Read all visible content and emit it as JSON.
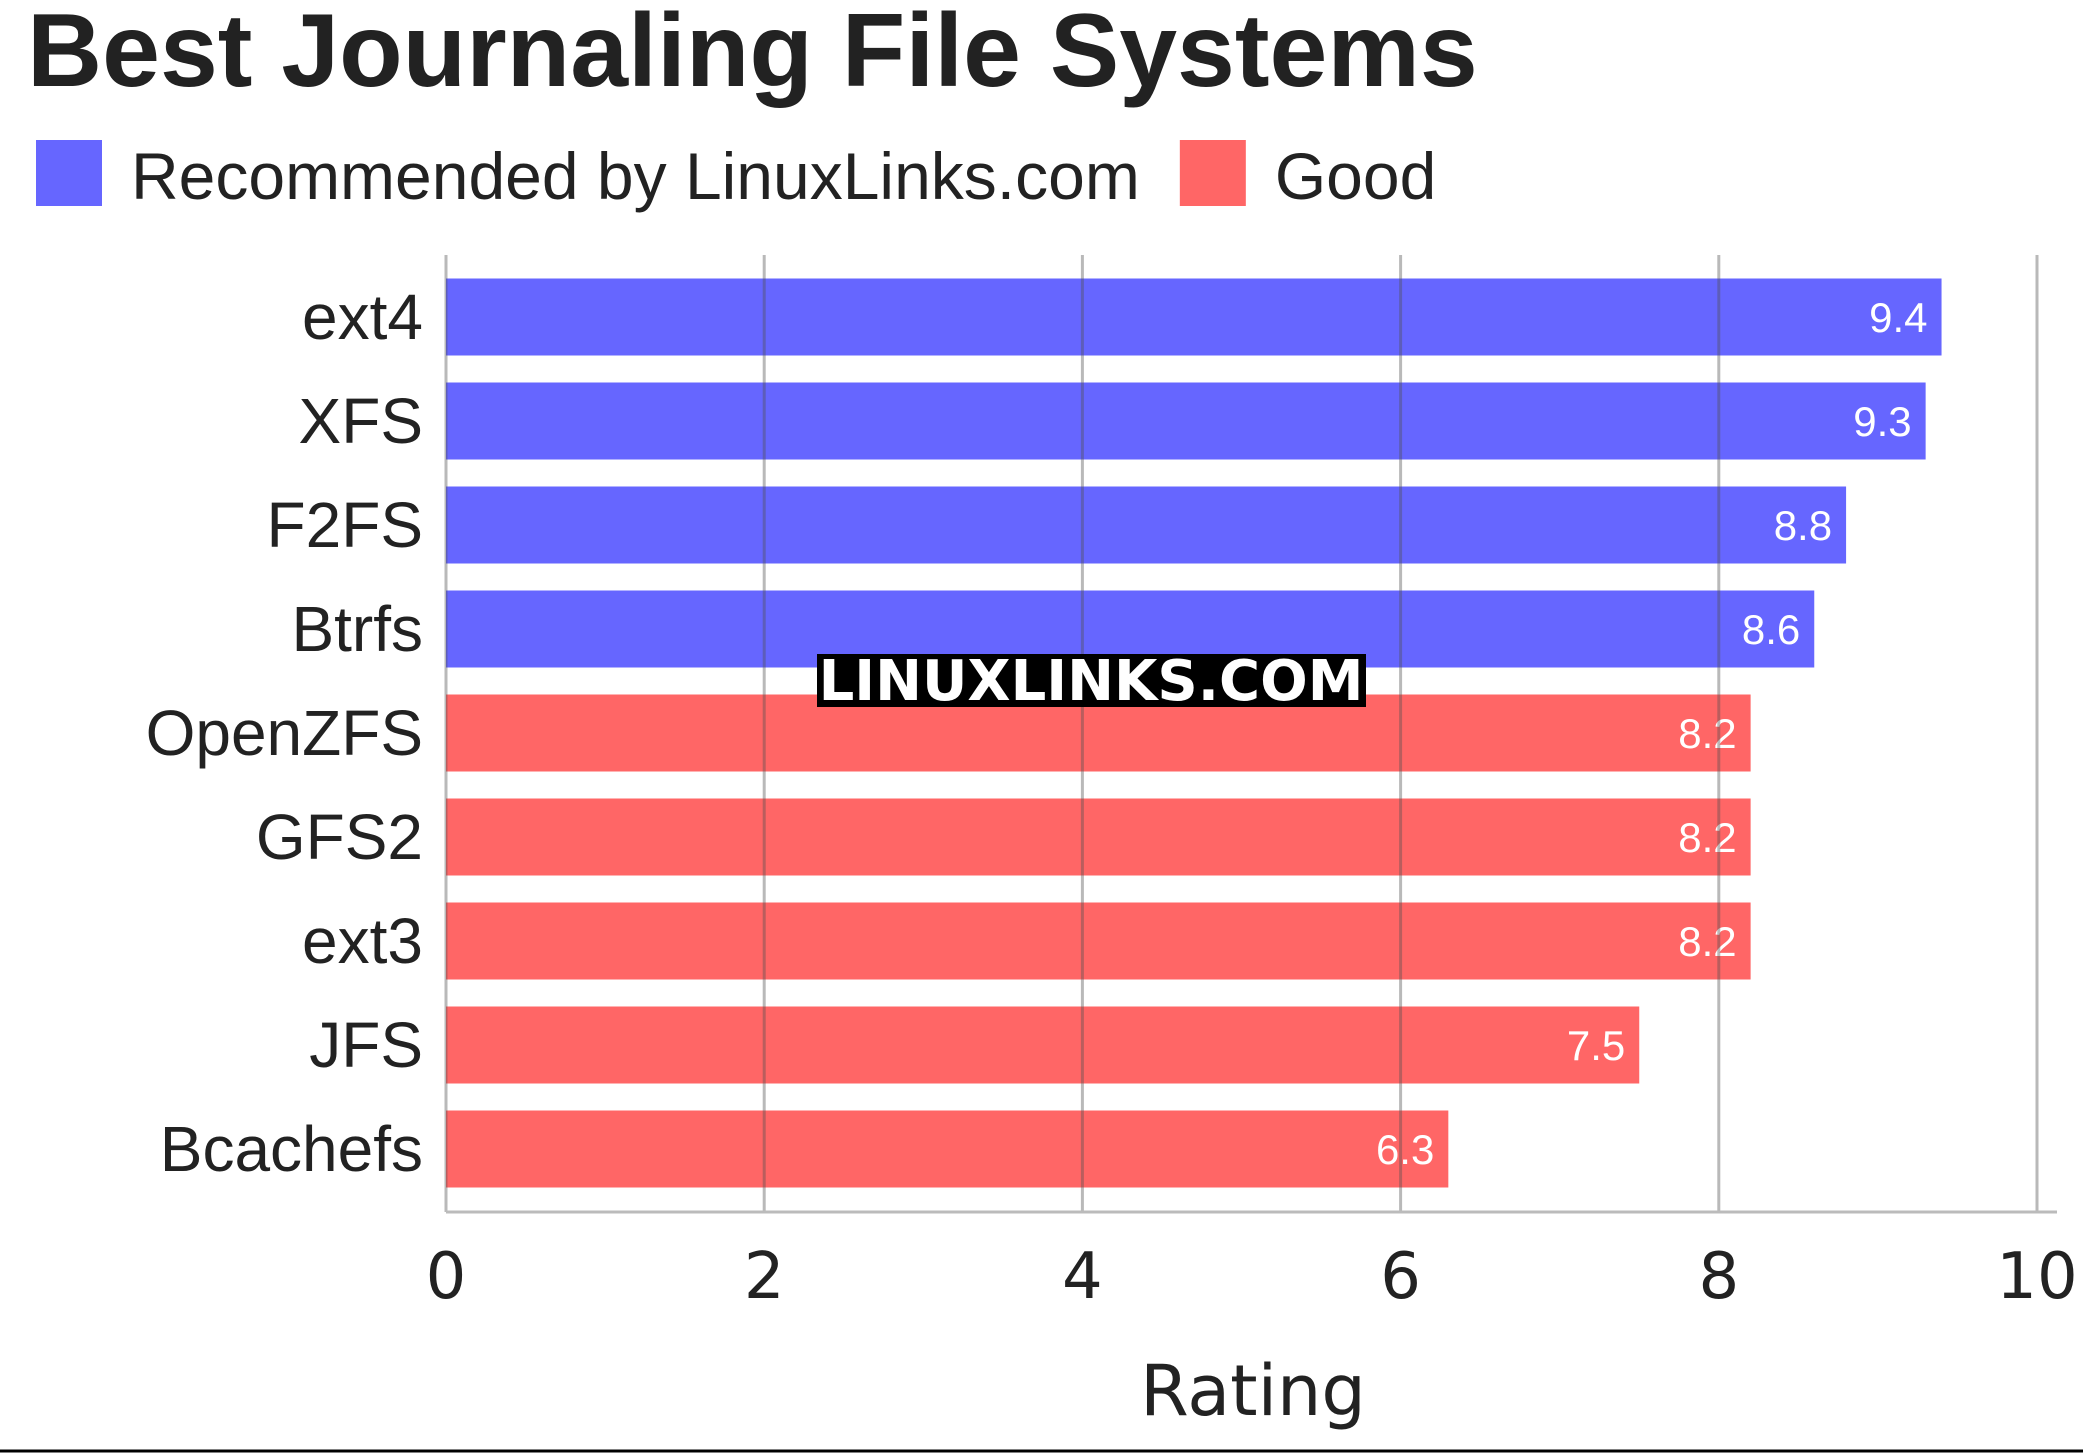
{
  "chart_data": {
    "type": "barh",
    "title": "Best Journaling File Systems",
    "xlabel": "Rating",
    "watermark": "LINUXLINKS.COM",
    "categories": [
      "ext4",
      "XFS",
      "F2FS",
      "Btrfs",
      "OpenZFS",
      "GFS2",
      "ext3",
      "JFS",
      "Bcachefs"
    ],
    "series": [
      {
        "name": "Recommended by LinuxLinks.com",
        "color": "#6666ff",
        "values": [
          9.4,
          9.3,
          8.8,
          8.6,
          null,
          null,
          null,
          null,
          null
        ]
      },
      {
        "name": "Good",
        "color": "#ff6666",
        "values": [
          null,
          null,
          null,
          null,
          8.2,
          8.2,
          8.2,
          7.5,
          6.3
        ]
      }
    ],
    "xlim": [
      0,
      10
    ],
    "xticks": [
      0,
      2,
      4,
      6,
      8,
      10
    ],
    "grid": true,
    "legend": "top-left"
  }
}
